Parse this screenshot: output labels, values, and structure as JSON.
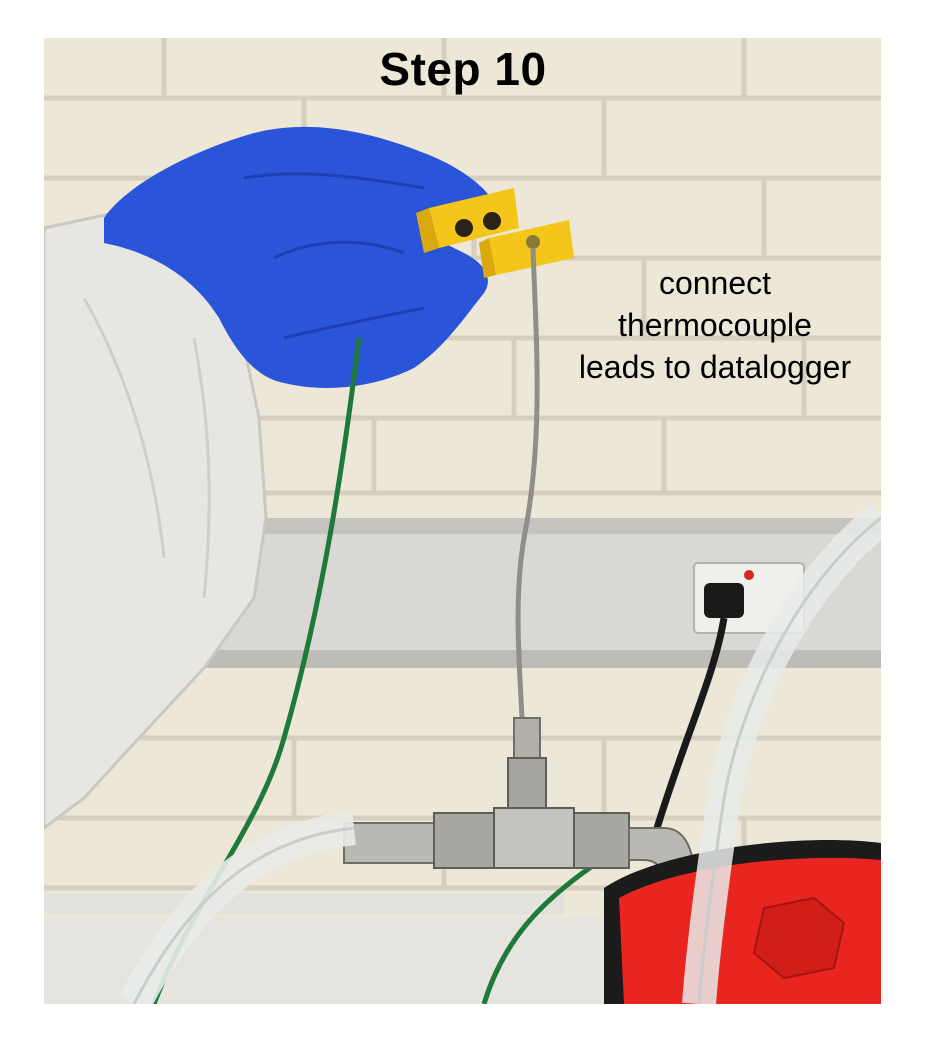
{
  "title": "Step 10",
  "caption_lines": [
    "connect",
    "thermocouple",
    "leads to datalogger"
  ],
  "colors": {
    "wall": "#ede7d8",
    "mortar": "#d8d1c0",
    "glove": "#2b55d9",
    "connector": "#f5c61a",
    "vessel_lid": "#e8261f",
    "cable_green": "#1e7a3a"
  }
}
